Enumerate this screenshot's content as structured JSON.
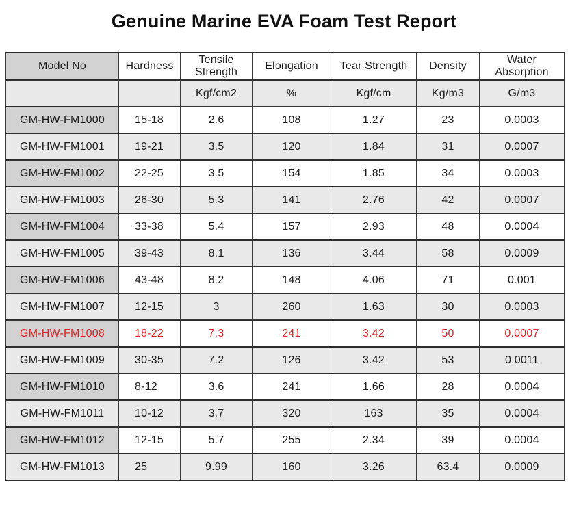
{
  "title": "Genuine Marine EVA Foam Test Report",
  "colors": {
    "highlight_red": "#e02427",
    "model_cell_gray": "#d2d2d2",
    "stripe_gray": "#e9e9e9",
    "border_dark": "#2e2e2e"
  },
  "table": {
    "columns": [
      {
        "key": "model",
        "label": "Model No",
        "unit": ""
      },
      {
        "key": "hardness",
        "label": "Hardness",
        "unit": ""
      },
      {
        "key": "tensile",
        "label": "Tensile Strength",
        "unit": "Kgf/cm2"
      },
      {
        "key": "elongation",
        "label": "Elongation",
        "unit": "%"
      },
      {
        "key": "tear",
        "label": "Tear Strength",
        "unit": "Kgf/cm"
      },
      {
        "key": "density",
        "label": "Density",
        "unit": "Kg/m3"
      },
      {
        "key": "water",
        "label": "Water Absorption",
        "unit": "G/m3"
      }
    ],
    "rows": [
      {
        "model": "GM-HW-FM1000",
        "hardness": "15-18",
        "tensile": "2.6",
        "elongation": "108",
        "tear": "1.27",
        "density": "23",
        "water": "0.0003",
        "highlight": false
      },
      {
        "model": "GM-HW-FM1001",
        "hardness": "19-21",
        "tensile": "3.5",
        "elongation": "120",
        "tear": "1.84",
        "density": "31",
        "water": "0.0007",
        "highlight": false
      },
      {
        "model": "GM-HW-FM1002",
        "hardness": "22-25",
        "tensile": "3.5",
        "elongation": "154",
        "tear": "1.85",
        "density": "34",
        "water": "0.0003",
        "highlight": false
      },
      {
        "model": "GM-HW-FM1003",
        "hardness": "26-30",
        "tensile": "5.3",
        "elongation": "141",
        "tear": "2.76",
        "density": "42",
        "water": "0.0007",
        "highlight": false
      },
      {
        "model": "GM-HW-FM1004",
        "hardness": "33-38",
        "tensile": "5.4",
        "elongation": "157",
        "tear": "2.93",
        "density": "48",
        "water": "0.0004",
        "highlight": false
      },
      {
        "model": "GM-HW-FM1005",
        "hardness": "39-43",
        "tensile": "8.1",
        "elongation": "136",
        "tear": "3.44",
        "density": "58",
        "water": "0.0009",
        "highlight": false
      },
      {
        "model": "GM-HW-FM1006",
        "hardness": "43-48",
        "tensile": "8.2",
        "elongation": "148",
        "tear": "4.06",
        "density": "71",
        "water": "0.001",
        "highlight": false
      },
      {
        "model": "GM-HW-FM1007",
        "hardness": "12-15",
        "tensile": "3",
        "elongation": "260",
        "tear": "1.63",
        "density": "30",
        "water": "0.0003",
        "highlight": false
      },
      {
        "model": "GM-HW-FM1008",
        "hardness": "18-22",
        "tensile": "7.3",
        "elongation": "241",
        "tear": "3.42",
        "density": "50",
        "water": "0.0007",
        "highlight": true
      },
      {
        "model": "GM-HW-FM1009",
        "hardness": "30-35",
        "tensile": "7.2",
        "elongation": "126",
        "tear": "3.42",
        "density": "53",
        "water": "0.0011",
        "highlight": false
      },
      {
        "model": "GM-HW-FM1010",
        "hardness": "8-12",
        "tensile": "3.6",
        "elongation": "241",
        "tear": "1.66",
        "density": "28",
        "water": "0.0004",
        "highlight": false
      },
      {
        "model": "GM-HW-FM1011",
        "hardness": "10-12",
        "tensile": "3.7",
        "elongation": "320",
        "tear": "163",
        "density": "35",
        "water": "0.0004",
        "highlight": false
      },
      {
        "model": "GM-HW-FM1012",
        "hardness": "12-15",
        "tensile": "5.7",
        "elongation": "255",
        "tear": "2.34",
        "density": "39",
        "water": "0.0004",
        "highlight": false
      },
      {
        "model": "GM-HW-FM1013",
        "hardness": "25",
        "tensile": "9.99",
        "elongation": "160",
        "tear": "3.26",
        "density": "63.4",
        "water": "0.0009",
        "highlight": false
      }
    ]
  }
}
